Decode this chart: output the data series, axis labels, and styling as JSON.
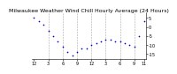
{
  "title": "Milwaukee Weather Wind Chill Hourly Average (24 Hours)",
  "x_hours": [
    0,
    1,
    2,
    3,
    4,
    5,
    6,
    7,
    8,
    9,
    10,
    11,
    12,
    13,
    14,
    15,
    16,
    17,
    18,
    19,
    20,
    21,
    22,
    23
  ],
  "y_values": [
    5,
    3,
    1,
    -2,
    -5,
    -8,
    -11,
    -14,
    -16,
    -14,
    -12,
    -12,
    -10,
    -9,
    -8,
    -7,
    -7,
    -8,
    -8,
    -9,
    -10,
    -11,
    -5,
    3
  ],
  "dot_color": "#0000cc",
  "bg_color": "#ffffff",
  "ylim": [
    -18,
    8
  ],
  "ytick_positions": [
    -15,
    -10,
    -5,
    0,
    5
  ],
  "ytick_labels": [
    "-15",
    "-10",
    "-5",
    "0",
    "5"
  ],
  "xlim": [
    -0.5,
    23.5
  ],
  "xtick_positions": [
    0,
    3,
    6,
    9,
    12,
    15,
    18,
    21,
    23
  ],
  "xtick_labels": [
    "12",
    "3",
    "6",
    "9",
    "12",
    "3",
    "6",
    "9",
    "11"
  ],
  "vline_positions": [
    3,
    6,
    9,
    12,
    15,
    18,
    21
  ],
  "title_fontsize": 4.5,
  "tick_fontsize": 3.5,
  "dot_size": 1.5,
  "grid_color": "#aaaaaa",
  "grid_lw": 0.4
}
